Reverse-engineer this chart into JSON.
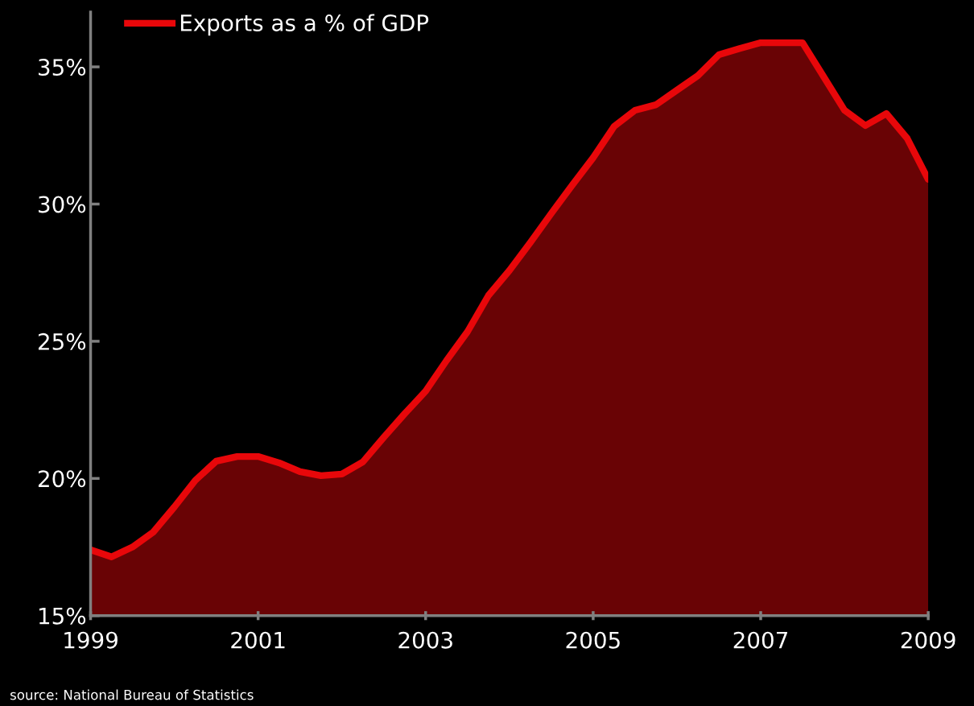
{
  "chart_data": {
    "type": "area",
    "x": [
      1999,
      1999.25,
      1999.5,
      1999.75,
      2000,
      2000.25,
      2000.5,
      2000.75,
      2001,
      2001.25,
      2001.5,
      2001.75,
      2002,
      2002.25,
      2002.5,
      2002.75,
      2003,
      2003.25,
      2003.5,
      2003.75,
      2004,
      2004.25,
      2004.5,
      2004.75,
      2005,
      2005.25,
      2005.5,
      2005.75,
      2006,
      2006.25,
      2006.5,
      2006.75,
      2007,
      2007.25,
      2007.5,
      2007.75,
      2008,
      2008.25,
      2008.5,
      2008.75,
      2009
    ],
    "series": [
      {
        "name": "Exports as a % of GDP",
        "color": "#e8070a",
        "values": [
          17.4,
          17.14,
          17.5,
          18.05,
          18.96,
          19.93,
          20.63,
          20.8,
          20.8,
          20.57,
          20.25,
          20.1,
          20.16,
          20.6,
          21.5,
          22.36,
          23.18,
          24.3,
          25.35,
          26.67,
          27.58,
          28.6,
          29.66,
          30.69,
          31.69,
          32.83,
          33.42,
          33.62,
          34.15,
          34.68,
          35.44,
          35.67,
          35.88,
          35.88,
          35.88,
          34.65,
          33.42,
          32.86,
          33.3,
          32.39,
          30.9
        ]
      }
    ],
    "xlim": [
      1999,
      2009
    ],
    "xticks": [
      1999,
      2001,
      2003,
      2005,
      2007,
      2009
    ],
    "ylim": [
      15,
      37
    ],
    "yticks": [
      {
        "value": 15,
        "label": "15%"
      },
      {
        "value": 20,
        "label": "20%"
      },
      {
        "value": 25,
        "label": "25%"
      },
      {
        "value": 30,
        "label": "30%"
      },
      {
        "value": 35,
        "label": "35%"
      }
    ],
    "legend": "top left",
    "grid": false,
    "marker": "none",
    "line_style": "solid",
    "annotations": [
      "source: National Bureau of Statistics"
    ]
  }
}
